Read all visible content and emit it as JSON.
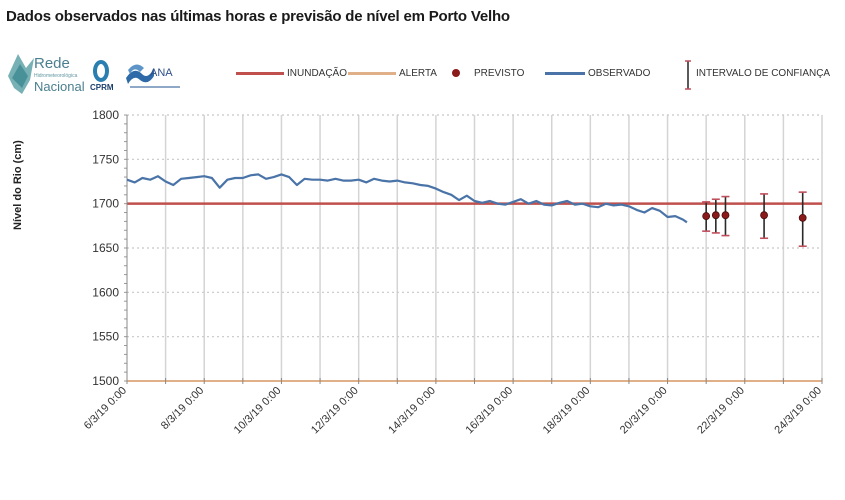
{
  "page": {
    "title": "Dados observados nas últimas horas e previsão de nível em Porto Velho"
  },
  "logos": [
    {
      "name": "Rede Hidrometeorológica Nacional",
      "lines": [
        "Rede",
        "Hidrometeorológica",
        "Nacional"
      ]
    },
    {
      "name": "CPRM",
      "text": "CPRM"
    },
    {
      "name": "ANA",
      "text": "ANA"
    }
  ],
  "legend": {
    "inundacao": {
      "label": "INUNDAÇÃO",
      "color": "#c0504d"
    },
    "alerta": {
      "label": "ALERTA",
      "color": "#e0b088"
    },
    "previsto": {
      "label": "PREVISTO",
      "color": "#8b1a1a"
    },
    "observado": {
      "label": "OBSERVADO",
      "color": "#4a74a8"
    },
    "intervalo": {
      "label": "INTERVALO DE CONFIANÇA",
      "color": "#222222",
      "cap_color": "#c0505d"
    }
  },
  "chart_data": {
    "type": "line",
    "title": "Dados observados nas últimas horas e previsão de nível em Porto Velho",
    "xlabel": "",
    "ylabel": "Nível do Rio  (cm)",
    "ylim": [
      1500,
      1800
    ],
    "yticks": [
      1500,
      1550,
      1600,
      1650,
      1700,
      1750,
      1800
    ],
    "xlim": [
      "6/3/19 0:00",
      "24/3/19 0:00"
    ],
    "xticks": [
      "6/3/19 0:00",
      "8/3/19 0:00",
      "10/3/19 0:00",
      "12/3/19 0:00",
      "14/3/19 0:00",
      "16/3/19 0:00",
      "18/3/19 0:00",
      "20/3/19 0:00",
      "22/3/19 0:00",
      "24/3/19 0:00"
    ],
    "grid": {
      "horizontal": "dotted",
      "vertical": "solid-daily"
    },
    "legend_position": "top",
    "thresholds": [
      {
        "name": "INUNDAÇÃO",
        "value": 1700,
        "color": "#c0504d"
      },
      {
        "name": "ALERTA",
        "value": 1500,
        "color": "#e0b088"
      }
    ],
    "series": [
      {
        "name": "OBSERVADO",
        "type": "line",
        "color": "#4a74a8",
        "x_days_from_6_3": [
          0,
          0.2,
          0.4,
          0.6,
          0.8,
          1.0,
          1.2,
          1.4,
          1.6,
          1.8,
          2.0,
          2.2,
          2.4,
          2.6,
          2.8,
          3.0,
          3.2,
          3.4,
          3.6,
          3.8,
          4.0,
          4.2,
          4.4,
          4.6,
          4.8,
          5.0,
          5.2,
          5.4,
          5.6,
          5.8,
          6.0,
          6.2,
          6.4,
          6.6,
          6.8,
          7.0,
          7.2,
          7.4,
          7.6,
          7.8,
          8.0,
          8.2,
          8.4,
          8.6,
          8.8,
          9.0,
          9.2,
          9.4,
          9.6,
          9.8,
          10.0,
          10.2,
          10.4,
          10.6,
          10.8,
          11.0,
          11.2,
          11.4,
          11.6,
          11.8,
          12.0,
          12.2,
          12.4,
          12.6,
          12.8,
          13.0,
          13.2,
          13.4,
          13.6,
          13.8,
          14.0,
          14.2,
          14.4,
          14.5
        ],
        "values": [
          1727,
          1724,
          1729,
          1727,
          1731,
          1725,
          1721,
          1728,
          1729,
          1730,
          1731,
          1729,
          1718,
          1727,
          1729,
          1729,
          1732,
          1733,
          1728,
          1730,
          1733,
          1730,
          1721,
          1728,
          1727,
          1727,
          1726,
          1728,
          1726,
          1726,
          1727,
          1724,
          1728,
          1726,
          1725,
          1726,
          1724,
          1723,
          1721,
          1720,
          1717,
          1713,
          1710,
          1704,
          1709,
          1703,
          1701,
          1703,
          1700,
          1699,
          1702,
          1705,
          1700,
          1703,
          1699,
          1698,
          1701,
          1703,
          1699,
          1700,
          1697,
          1696,
          1700,
          1698,
          1699,
          1697,
          1693,
          1690,
          1695,
          1692,
          1685,
          1686,
          1682,
          1679
        ],
        "last_observed_approx": "20/3/19 12:00"
      },
      {
        "name": "PREVISTO",
        "type": "scatter",
        "color": "#8b1a1a",
        "x": [
          "21/3/19 0:00",
          "21/3/19 6:00",
          "21/3/19 12:00",
          "22/3/19 12:00",
          "23/3/19 12:00"
        ],
        "x_days_from_6_3": [
          15.0,
          15.25,
          15.5,
          16.5,
          17.5
        ],
        "values": [
          1686,
          1687,
          1687,
          1687,
          1684
        ],
        "ci_upper": [
          1702,
          1705,
          1708,
          1711,
          1713
        ],
        "ci_lower": [
          1669,
          1667,
          1664,
          1661,
          1652
        ]
      }
    ]
  }
}
